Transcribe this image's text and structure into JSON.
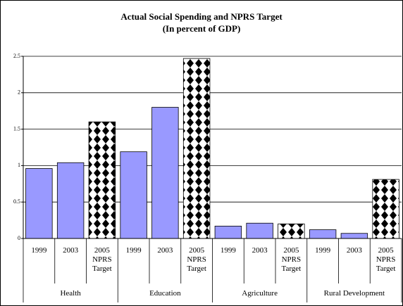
{
  "chart_data": {
    "type": "bar",
    "title": "Actual Social Spending and NPRS Target",
    "subtitle": "(In percent of GDP)",
    "categories": [
      "1999",
      "2003",
      "2005 NPRS Target",
      "1999",
      "2003",
      "2005 NPRS Target",
      "1999",
      "2003",
      "2005 NPRS Target",
      "1999",
      "2003",
      "2005 NPRS Target"
    ],
    "groups": [
      "Health",
      "Education",
      "Agriculture",
      "Rural Development"
    ],
    "values": [
      0.96,
      1.04,
      1.6,
      1.19,
      1.8,
      2.47,
      0.17,
      0.21,
      0.2,
      0.12,
      0.07,
      0.81
    ],
    "patterned": [
      false,
      false,
      true,
      false,
      false,
      true,
      false,
      false,
      true,
      false,
      false,
      true
    ],
    "color": "#9999ff",
    "pattern_color": "#000000",
    "ylim": [
      0,
      2.5
    ],
    "yticks": [
      0,
      0.5,
      1,
      1.5,
      2,
      2.5
    ],
    "grid": true
  }
}
